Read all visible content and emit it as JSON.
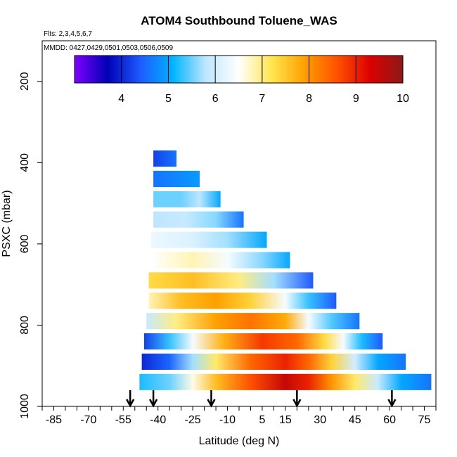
{
  "chart_data": {
    "type": "heatmap",
    "title": "ATOM4 Southbound Toluene_WAS",
    "flights_note": "Flts: 2,3,4,5,6,7",
    "dates_note": "MMDD: 0427,0429,0501,0503,0506,0509",
    "xlabel": "Latitude (deg N)",
    "ylabel": "PSXC (mbar)",
    "xlim": [
      -90,
      80
    ],
    "ylim": [
      1000,
      100
    ],
    "x_ticks": [
      -85,
      -70,
      -55,
      -40,
      -25,
      -10,
      5,
      15,
      30,
      45,
      60,
      75
    ],
    "y_ticks": [
      200,
      400,
      600,
      800,
      1000
    ],
    "colorbar": {
      "range": [
        3,
        10
      ],
      "ticks": [
        4,
        5,
        6,
        7,
        8,
        9,
        10
      ],
      "colors": [
        "#7f00ff",
        "#0000b4",
        "#1e5aff",
        "#00b4ff",
        "#bee6ff",
        "#ffffff",
        "#ffe650",
        "#ffa000",
        "#ff5000",
        "#dc0000",
        "#8b1a1a"
      ]
    },
    "arrows_latitude": [
      -52,
      -42,
      -17,
      20,
      61
    ],
    "rows": [
      {
        "pressure_top": 370,
        "pressure_bottom": 410,
        "lat_min": -42,
        "lat_max": -32,
        "stops": [
          [
            -42,
            4.2
          ],
          [
            -32,
            4.6
          ]
        ]
      },
      {
        "pressure_top": 420,
        "pressure_bottom": 460,
        "lat_min": -42,
        "lat_max": -22,
        "stops": [
          [
            -42,
            4.6
          ],
          [
            -22,
            4.9
          ]
        ]
      },
      {
        "pressure_top": 470,
        "pressure_bottom": 510,
        "lat_min": -42,
        "lat_max": -13,
        "stops": [
          [
            -42,
            5.5
          ],
          [
            -30,
            5.5
          ],
          [
            -22,
            5.8
          ],
          [
            -13,
            5.0
          ]
        ]
      },
      {
        "pressure_top": 520,
        "pressure_bottom": 560,
        "lat_min": -42,
        "lat_max": -3,
        "stops": [
          [
            -42,
            5.8
          ],
          [
            -28,
            5.9
          ],
          [
            -15,
            5.6
          ],
          [
            -3,
            4.6
          ]
        ]
      },
      {
        "pressure_top": 570,
        "pressure_bottom": 610,
        "lat_min": -43,
        "lat_max": 7,
        "stops": [
          [
            -43,
            6.3
          ],
          [
            -25,
            6.1
          ],
          [
            -10,
            5.7
          ],
          [
            7,
            5.0
          ]
        ]
      },
      {
        "pressure_top": 620,
        "pressure_bottom": 660,
        "lat_min": -43,
        "lat_max": 17,
        "stops": [
          [
            -43,
            6.5
          ],
          [
            -25,
            6.8
          ],
          [
            -10,
            6.4
          ],
          [
            5,
            5.6
          ],
          [
            17,
            5.0
          ]
        ]
      },
      {
        "pressure_top": 670,
        "pressure_bottom": 710,
        "lat_min": -44,
        "lat_max": 27,
        "stops": [
          [
            -44,
            7.3
          ],
          [
            -25,
            7.6
          ],
          [
            -5,
            7.0
          ],
          [
            10,
            5.7
          ],
          [
            27,
            4.4
          ]
        ]
      },
      {
        "pressure_top": 720,
        "pressure_bottom": 760,
        "lat_min": -44,
        "lat_max": 37,
        "stops": [
          [
            -44,
            6.8
          ],
          [
            -30,
            7.6
          ],
          [
            -15,
            7.9
          ],
          [
            0,
            7.4
          ],
          [
            15,
            6.4
          ],
          [
            25,
            5.3
          ],
          [
            37,
            4.4
          ]
        ]
      },
      {
        "pressure_top": 770,
        "pressure_bottom": 810,
        "lat_min": -45,
        "lat_max": 47,
        "stops": [
          [
            -45,
            5.9
          ],
          [
            -32,
            7.0
          ],
          [
            -15,
            7.9
          ],
          [
            0,
            8.3
          ],
          [
            15,
            7.8
          ],
          [
            25,
            6.4
          ],
          [
            35,
            5.4
          ],
          [
            47,
            4.6
          ]
        ]
      },
      {
        "pressure_top": 820,
        "pressure_bottom": 860,
        "lat_min": -46,
        "lat_max": 57,
        "stops": [
          [
            -46,
            4.2
          ],
          [
            -35,
            5.3
          ],
          [
            -25,
            6.4
          ],
          [
            -12,
            7.7
          ],
          [
            5,
            8.8
          ],
          [
            20,
            8.4
          ],
          [
            32,
            7.3
          ],
          [
            40,
            6.4
          ],
          [
            48,
            5.2
          ],
          [
            57,
            4.4
          ]
        ]
      },
      {
        "pressure_top": 870,
        "pressure_bottom": 910,
        "lat_min": -47,
        "lat_max": 67,
        "stops": [
          [
            -47,
            4.0
          ],
          [
            -35,
            4.5
          ],
          [
            -25,
            5.7
          ],
          [
            -15,
            7.1
          ],
          [
            0,
            8.4
          ],
          [
            15,
            9.0
          ],
          [
            25,
            8.4
          ],
          [
            35,
            7.4
          ],
          [
            45,
            6.0
          ],
          [
            55,
            5.0
          ],
          [
            67,
            4.6
          ]
        ]
      },
      {
        "pressure_top": 920,
        "pressure_bottom": 960,
        "lat_min": -48,
        "lat_max": 78,
        "stops": [
          [
            -48,
            5.2
          ],
          [
            -35,
            5.5
          ],
          [
            -25,
            6.6
          ],
          [
            -15,
            7.6
          ],
          [
            0,
            8.6
          ],
          [
            15,
            9.5
          ],
          [
            25,
            9.0
          ],
          [
            35,
            8.0
          ],
          [
            45,
            7.1
          ],
          [
            55,
            5.9
          ],
          [
            65,
            5.0
          ],
          [
            78,
            4.6
          ]
        ]
      }
    ]
  }
}
